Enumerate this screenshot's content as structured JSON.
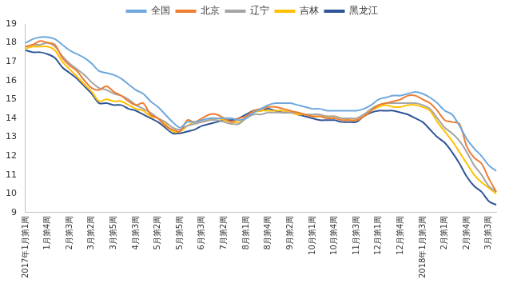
{
  "chart_data": {
    "type": "line",
    "categories": [
      "2017年1月第1周",
      null,
      null,
      "1月第4周",
      null,
      null,
      "2月第3周",
      null,
      null,
      "3月第2周",
      null,
      null,
      "3月第5周",
      null,
      null,
      "4月第3周",
      null,
      null,
      "5月第2周",
      null,
      null,
      "5月第5周",
      null,
      null,
      "6月第3周",
      null,
      null,
      "7月第2周",
      null,
      null,
      "8月第1周",
      null,
      null,
      "8月第4周",
      null,
      null,
      "9月第2周",
      null,
      null,
      "10月第1周",
      null,
      null,
      "10月第4周",
      null,
      null,
      "11月第3周",
      null,
      null,
      "12月第1周",
      null,
      null,
      "12月第4周",
      null,
      null,
      "2018年1月第3周",
      null,
      null,
      "2月第1周",
      null,
      null,
      "2月第4周",
      null,
      null,
      "3月第3周",
      null
    ],
    "series": [
      {
        "name": "全国",
        "color": "#6FA8DC",
        "values": [
          18.0,
          18.2,
          18.3,
          18.3,
          18.2,
          17.9,
          17.6,
          17.4,
          17.2,
          16.9,
          16.5,
          16.4,
          16.3,
          16.1,
          15.8,
          15.5,
          15.3,
          14.9,
          14.6,
          14.2,
          13.8,
          13.5,
          13.8,
          13.8,
          13.9,
          14.0,
          14.0,
          14.0,
          14.0,
          13.9,
          14.0,
          14.3,
          14.5,
          14.7,
          14.8,
          14.8,
          14.8,
          14.7,
          14.6,
          14.5,
          14.5,
          14.4,
          14.4,
          14.4,
          14.4,
          14.4,
          14.5,
          14.7,
          15.0,
          15.1,
          15.2,
          15.2,
          15.3,
          15.4,
          15.3,
          15.1,
          14.8,
          14.4,
          14.2,
          13.6,
          12.9,
          12.4,
          12.0,
          11.5,
          11.2
        ]
      },
      {
        "name": "北京",
        "color": "#ED7D31",
        "values": [
          17.8,
          17.9,
          18.1,
          18.0,
          17.9,
          17.2,
          16.8,
          16.5,
          16.0,
          15.6,
          15.5,
          15.7,
          15.4,
          15.2,
          14.9,
          14.7,
          14.8,
          14.2,
          14.0,
          13.6,
          13.4,
          13.3,
          13.9,
          13.8,
          14.0,
          14.2,
          14.2,
          14.0,
          13.8,
          14.0,
          14.1,
          14.4,
          14.5,
          14.6,
          14.6,
          14.5,
          14.4,
          14.3,
          14.2,
          14.1,
          14.1,
          14.0,
          14.0,
          13.9,
          13.9,
          13.9,
          14.1,
          14.4,
          14.7,
          14.8,
          14.9,
          15.0,
          15.2,
          15.2,
          15.0,
          14.8,
          14.4,
          13.9,
          13.8,
          13.7,
          12.5,
          11.9,
          11.6,
          10.8,
          10.1
        ]
      },
      {
        "name": "辽宁",
        "color": "#A5A5A5",
        "values": [
          17.8,
          17.9,
          17.9,
          18.0,
          17.8,
          17.3,
          16.9,
          16.6,
          16.3,
          15.9,
          15.6,
          15.5,
          15.3,
          15.2,
          15.0,
          14.7,
          14.5,
          14.3,
          14.0,
          13.8,
          13.5,
          13.4,
          13.6,
          13.7,
          13.8,
          13.9,
          13.9,
          13.8,
          13.7,
          13.7,
          14.0,
          14.2,
          14.2,
          14.3,
          14.3,
          14.3,
          14.3,
          14.3,
          14.2,
          14.2,
          14.2,
          14.1,
          14.1,
          14.0,
          14.0,
          14.0,
          14.2,
          14.5,
          14.7,
          14.8,
          14.8,
          14.8,
          14.8,
          14.8,
          14.7,
          14.5,
          14.0,
          13.5,
          13.2,
          12.8,
          12.2,
          11.5,
          11.0,
          10.4,
          10.1
        ]
      },
      {
        "name": "吉林",
        "color": "#FFC000",
        "values": [
          17.7,
          17.8,
          17.8,
          17.8,
          17.6,
          17.0,
          16.6,
          16.2,
          15.8,
          15.4,
          14.9,
          15.0,
          14.9,
          14.9,
          14.7,
          14.5,
          14.4,
          14.1,
          14.0,
          13.7,
          13.3,
          13.3,
          13.6,
          13.8,
          13.8,
          13.9,
          14.0,
          13.9,
          13.8,
          13.8,
          14.0,
          14.3,
          14.4,
          14.4,
          14.4,
          14.4,
          14.3,
          14.2,
          14.2,
          14.1,
          14.1,
          14.1,
          14.1,
          14.0,
          13.9,
          13.9,
          14.1,
          14.4,
          14.6,
          14.7,
          14.6,
          14.6,
          14.7,
          14.7,
          14.6,
          14.4,
          13.8,
          13.3,
          12.8,
          12.2,
          11.6,
          11.0,
          10.6,
          10.3,
          10.0
        ]
      },
      {
        "name": "黑龙江",
        "color": "#2F5597",
        "values": [
          17.6,
          17.5,
          17.5,
          17.4,
          17.2,
          16.7,
          16.4,
          16.1,
          15.7,
          15.3,
          14.8,
          14.8,
          14.7,
          14.7,
          14.5,
          14.4,
          14.2,
          14.0,
          13.8,
          13.5,
          13.2,
          13.2,
          13.3,
          13.4,
          13.6,
          13.7,
          13.8,
          13.9,
          13.9,
          14.0,
          14.2,
          14.4,
          14.4,
          14.5,
          14.4,
          14.3,
          14.3,
          14.2,
          14.1,
          14.0,
          13.9,
          13.9,
          13.9,
          13.8,
          13.8,
          13.8,
          14.1,
          14.3,
          14.4,
          14.4,
          14.4,
          14.3,
          14.2,
          14.0,
          13.8,
          13.4,
          13.0,
          12.7,
          12.2,
          11.6,
          10.9,
          10.4,
          10.1,
          9.6,
          9.4
        ]
      }
    ],
    "ylim": [
      9,
      19
    ],
    "yticks": [
      9,
      10,
      11,
      12,
      13,
      14,
      15,
      16,
      17,
      18,
      19
    ],
    "grid": false,
    "legend": "top"
  }
}
